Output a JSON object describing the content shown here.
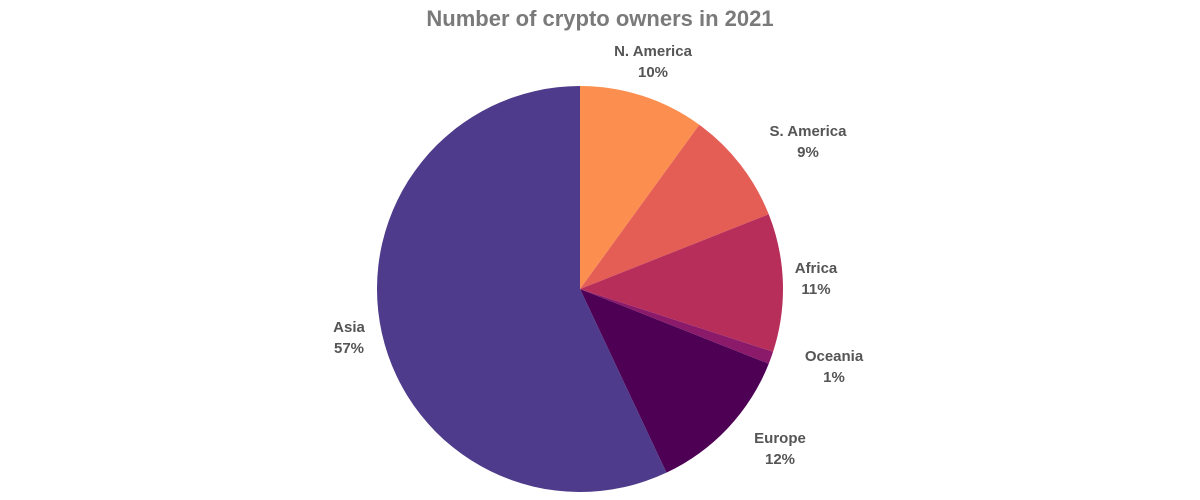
{
  "chart_data": {
    "type": "pie",
    "title": "Number of crypto owners in 2021",
    "slices": [
      {
        "label": "N. America",
        "value": 10,
        "value_label": "10%",
        "color": "#fc8f4f"
      },
      {
        "label": "S. America",
        "value": 9,
        "value_label": "9%",
        "color": "#e45e56"
      },
      {
        "label": "Africa",
        "value": 11,
        "value_label": "11%",
        "color": "#b82e5a"
      },
      {
        "label": "Oceania",
        "value": 1,
        "value_label": "1%",
        "color": "#8b1a6a"
      },
      {
        "label": "Europe",
        "value": 12,
        "value_label": "12%",
        "color": "#4e0055"
      },
      {
        "label": "Asia",
        "value": 57,
        "value_label": "57%",
        "color": "#4e3b8b"
      }
    ],
    "start": "12 o'clock",
    "direction": "clockwise",
    "legend": "none"
  }
}
